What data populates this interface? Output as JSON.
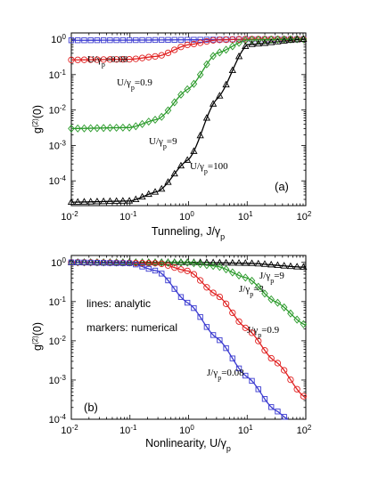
{
  "chart_data": [
    {
      "type": "line",
      "panel": "(a)",
      "xlabel": "Tunneling, J/γp",
      "xlabel_parts": {
        "main": "Tunneling, J/γ",
        "sub": "p"
      },
      "ylabel": "g(2)(0)",
      "ylabel_parts": {
        "main": "g",
        "sup": "(2)",
        "tail": "(0)"
      },
      "xscale": "log",
      "yscale": "log",
      "xlim": [
        0.01,
        100
      ],
      "ylim": [
        2e-05,
        1.5
      ],
      "x_ticks": [
        "10",
        "10",
        "10",
        "10",
        "10"
      ],
      "x_tick_exps": [
        "-2",
        "-1",
        "0",
        "1",
        "2"
      ],
      "y_ticks": [
        "10",
        "10",
        "10",
        "10",
        "10"
      ],
      "y_tick_exps": [
        "-4",
        "-3",
        "-2",
        "-1",
        "0"
      ],
      "legend_note": "lines: analytic, markers: numerical",
      "series": [
        {
          "name": "U/γp=0.08",
          "label_main": "U/γ",
          "label_sub": "p",
          "label_tail": "=0.08",
          "color": "#3a3ad0",
          "marker": "square",
          "x": [
            0.01,
            0.1,
            1,
            10,
            100
          ],
          "y": [
            0.93,
            0.94,
            0.96,
            0.99,
            1.0
          ]
        },
        {
          "name": "U/γp=0.9",
          "label_main": "U/γ",
          "label_sub": "p",
          "label_tail": "=0.9",
          "color": "#e02020",
          "marker": "circle",
          "x": [
            0.01,
            0.1,
            0.3,
            1,
            3,
            10,
            100
          ],
          "y": [
            0.26,
            0.27,
            0.33,
            0.7,
            0.95,
            1.0,
            1.0
          ]
        },
        {
          "name": "U/γp=9",
          "label_main": "U/γ",
          "label_sub": "p",
          "label_tail": "=9",
          "color": "#2a9a2a",
          "marker": "diamond",
          "x": [
            0.01,
            0.1,
            0.3,
            1,
            3,
            10,
            100
          ],
          "y": [
            0.003,
            0.0032,
            0.0055,
            0.04,
            0.4,
            0.95,
            1.0
          ]
        },
        {
          "name": "U/γp=100",
          "label_main": "U/γ",
          "label_sub": "p",
          "label_tail": "=100",
          "color": "#000000",
          "marker": "triangle",
          "x": [
            0.01,
            0.1,
            0.3,
            1,
            3,
            10,
            100
          ],
          "y": [
            2.5e-05,
            2.7e-05,
            5e-05,
            0.0004,
            0.02,
            0.7,
            1.0
          ]
        }
      ]
    },
    {
      "type": "line",
      "panel": "(b)",
      "xlabel": "Nonlinearity, U/γp",
      "xlabel_parts": {
        "main": "Nonlinearity, U/γ",
        "sub": "p"
      },
      "ylabel": "g(2)(0)",
      "ylabel_parts": {
        "main": "g",
        "sup": "(2)",
        "tail": "(0)"
      },
      "xscale": "log",
      "yscale": "log",
      "xlim": [
        0.01,
        100
      ],
      "ylim": [
        0.0001,
        1.5
      ],
      "x_ticks": [
        "10",
        "10",
        "10",
        "10",
        "10"
      ],
      "x_tick_exps": [
        "-2",
        "-1",
        "0",
        "1",
        "2"
      ],
      "y_ticks": [
        "10",
        "10",
        "10",
        "10",
        "10"
      ],
      "y_tick_exps": [
        "-4",
        "-3",
        "-2",
        "-1",
        "0"
      ],
      "annotations": {
        "line1": "lines: analytic",
        "line2": "markers: numerical"
      },
      "series": [
        {
          "name": "J/γp=9",
          "label_main": "J/γ",
          "label_sub": "p",
          "label_tail": "=9",
          "color": "#000000",
          "marker": "triangle",
          "x": [
            0.01,
            1,
            10,
            100
          ],
          "y": [
            1.0,
            1.0,
            0.95,
            0.75
          ]
        },
        {
          "name": "J/γp=3",
          "label_main": "J/γ",
          "label_sub": "p",
          "label_tail": "=3",
          "color": "#2a9a2a",
          "marker": "diamond",
          "x": [
            0.01,
            1,
            3,
            10,
            30,
            100
          ],
          "y": [
            1.0,
            0.98,
            0.8,
            0.4,
            0.1,
            0.025
          ]
        },
        {
          "name": "J/γp=0.9",
          "label_main": "J/γ",
          "label_sub": "p",
          "label_tail": "=0.9",
          "color": "#e02020",
          "marker": "circle",
          "x": [
            0.01,
            0.3,
            1,
            3,
            10,
            30,
            100
          ],
          "y": [
            1.0,
            0.95,
            0.6,
            0.15,
            0.02,
            0.003,
            0.00035
          ]
        },
        {
          "name": "J/γp=0.08",
          "label_main": "J/γ",
          "label_sub": "p",
          "label_tail": "=0.08",
          "color": "#3a3ad0",
          "marker": "square",
          "x": [
            0.01,
            0.1,
            0.3,
            1,
            3,
            10,
            30,
            50
          ],
          "y": [
            1.0,
            0.95,
            0.6,
            0.09,
            0.012,
            0.0012,
            0.00017,
            0.0001
          ]
        }
      ]
    }
  ]
}
